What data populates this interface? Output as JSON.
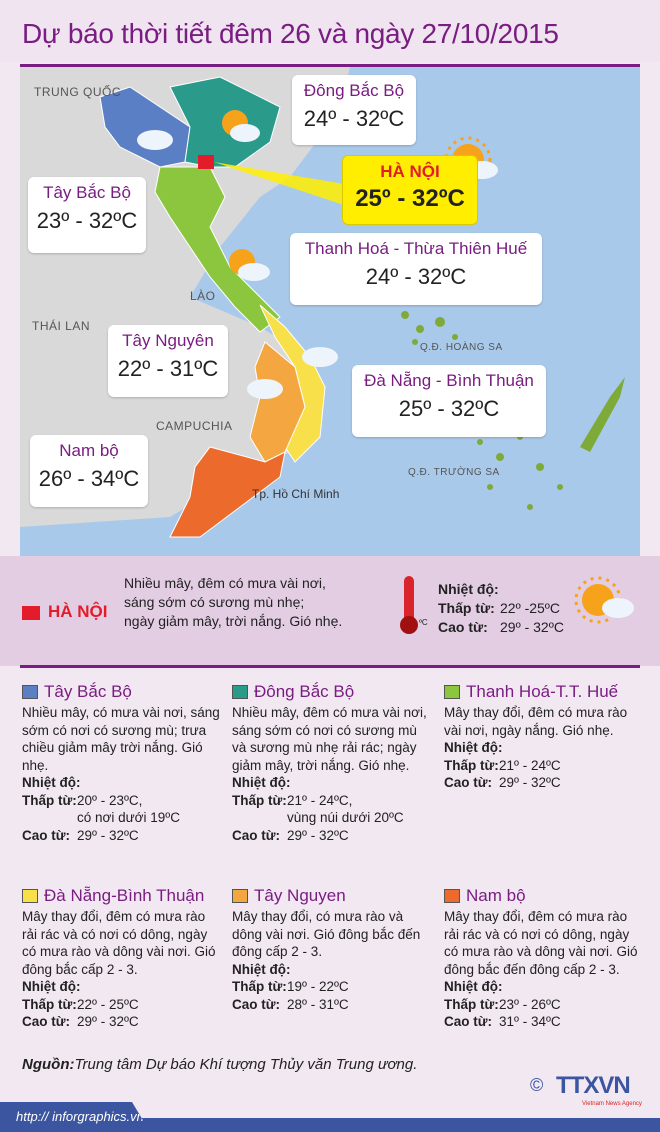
{
  "title": "Dự báo thời tiết đêm 26 và ngày 27/10/2015",
  "map": {
    "labels": {
      "china": "TRUNG QUỐC",
      "laos": "LÀO",
      "thailand": "THÁI LAN",
      "cambodia": "CAMPUCHIA",
      "hoangsa": "Q.Đ. HOÀNG SA",
      "truongsa": "Q.Đ. TRƯỜNG SA",
      "hcm": "Tp. Hồ Chí Minh"
    },
    "regions": [
      {
        "name": "Đông Bắc Bộ",
        "temp": "24º - 32ºC",
        "color": "#2a9a8a"
      },
      {
        "name": "Tây Bắc Bộ",
        "temp": "23º - 32ºC",
        "color": "#5b7fc4"
      },
      {
        "name": "HÀ NỘI",
        "temp": "25º - 32ºC",
        "color": "#e21c2a"
      },
      {
        "name": "Thanh Hoá - Thừa Thiên Huế",
        "temp": "24º - 32ºC",
        "color": "#8cc63f"
      },
      {
        "name": "Tây Nguyên",
        "temp": "22º - 31ºC",
        "color": "#f4a640"
      },
      {
        "name": "Đà Nẵng - Bình Thuận",
        "temp": "25º - 32ºC",
        "color": "#f7e04a"
      },
      {
        "name": "Nam bộ",
        "temp": "26º - 34ºC",
        "color": "#ec6a2c"
      }
    ],
    "sea_color": "#a9c9ea",
    "land_color": "#d9d9d9"
  },
  "hanoi": {
    "name": "HÀ NỘI",
    "desc": [
      "Nhiều mây, đêm có mưa vài nơi,",
      "sáng sớm có sương mù nhẹ;",
      "ngày giảm mây, trời nắng. Gió nhẹ."
    ],
    "temp_label": "Nhiệt độ:",
    "low_label": "Thấp từ:",
    "low": "22º -25ºC",
    "high_label": "Cao từ:",
    "high": "29º - 32ºC",
    "unit": "ºC"
  },
  "sections": [
    {
      "name": "Tây Bắc Bộ",
      "color": "#5b7fc4",
      "desc": "Nhiều mây, có mưa vài nơi, sáng sớm có nơi có sương mù; trưa chiều giảm mây trời nắng. Gió nhẹ.",
      "temp_label": "Nhiệt độ:",
      "low_label": "Thấp từ:",
      "low": "20º - 23ºC,",
      "low_note": "có nơi dưới 19ºC",
      "high_label": "Cao từ:",
      "high": "29º - 32ºC"
    },
    {
      "name": "Đông Bắc Bộ",
      "color": "#2a9a8a",
      "desc": "Nhiều mây, đêm có mưa vài nơi, sáng sớm có nơi có sương mù và sương mù nhẹ rải rác; ngày giảm mây, trời nắng. Gió nhẹ.",
      "temp_label": "Nhiệt độ:",
      "low_label": "Thấp từ:",
      "low": "21º - 24ºC,",
      "low_note": "vùng núi dưới 20ºC",
      "high_label": "Cao từ:",
      "high": "29º - 32ºC"
    },
    {
      "name": "Thanh Hoá-T.T. Huế",
      "color": "#8cc63f",
      "desc": "Mây thay đổi, đêm có mưa rào vài nơi, ngày nắng. Gió nhẹ.",
      "temp_label": "Nhiệt độ:",
      "low_label": "Thấp từ:",
      "low": "21º - 24ºC",
      "low_note": "",
      "high_label": "Cao từ:",
      "high": "29º - 32ºC"
    },
    {
      "name": "Đà Nẵng-Bình Thuận",
      "color": "#f7e04a",
      "desc": "Mây thay đổi, đêm có mưa rào rải rác và có nơi có dông, ngày có mưa rào và dông vài nơi. Gió đông bắc cấp 2 - 3.",
      "temp_label": "Nhiệt độ:",
      "low_label": "Thấp từ:",
      "low": "22º - 25ºC",
      "low_note": "",
      "high_label": "Cao từ:",
      "high": "29º - 32ºC"
    },
    {
      "name": "Tây Nguyen",
      "color": "#f4a640",
      "desc": "Mây thay đổi, có mưa rào và dông vài nơi. Gió đông bắc đến đông cấp 2 - 3.",
      "temp_label": "Nhiệt độ:",
      "low_label": "Thấp từ:",
      "low": "19º - 22ºC",
      "low_note": "",
      "high_label": "Cao từ:",
      "high": "28º - 31ºC"
    },
    {
      "name": "Nam bộ",
      "color": "#ec6a2c",
      "desc": "Mây thay đổi, đêm có mưa rào rải rác và có nơi có dông, ngày có mưa rào và dông vài nơi. Gió đông bắc đến đông cấp 2 - 3.",
      "temp_label": "Nhiệt độ:",
      "low_label": "Thấp từ:",
      "low": "23º - 26ºC",
      "low_note": "",
      "high_label": "Cao từ:",
      "high": "31º - 34ºC"
    }
  ],
  "footer": {
    "source_label": "Nguồn:",
    "source": "Trung tâm Dự báo Khí tượng Thủy văn Trung ương.",
    "url": "http:// inforgraphics.vn",
    "logo": "TTXVN",
    "logo_sub": "Vietnam News Agency",
    "copyright": "©"
  }
}
